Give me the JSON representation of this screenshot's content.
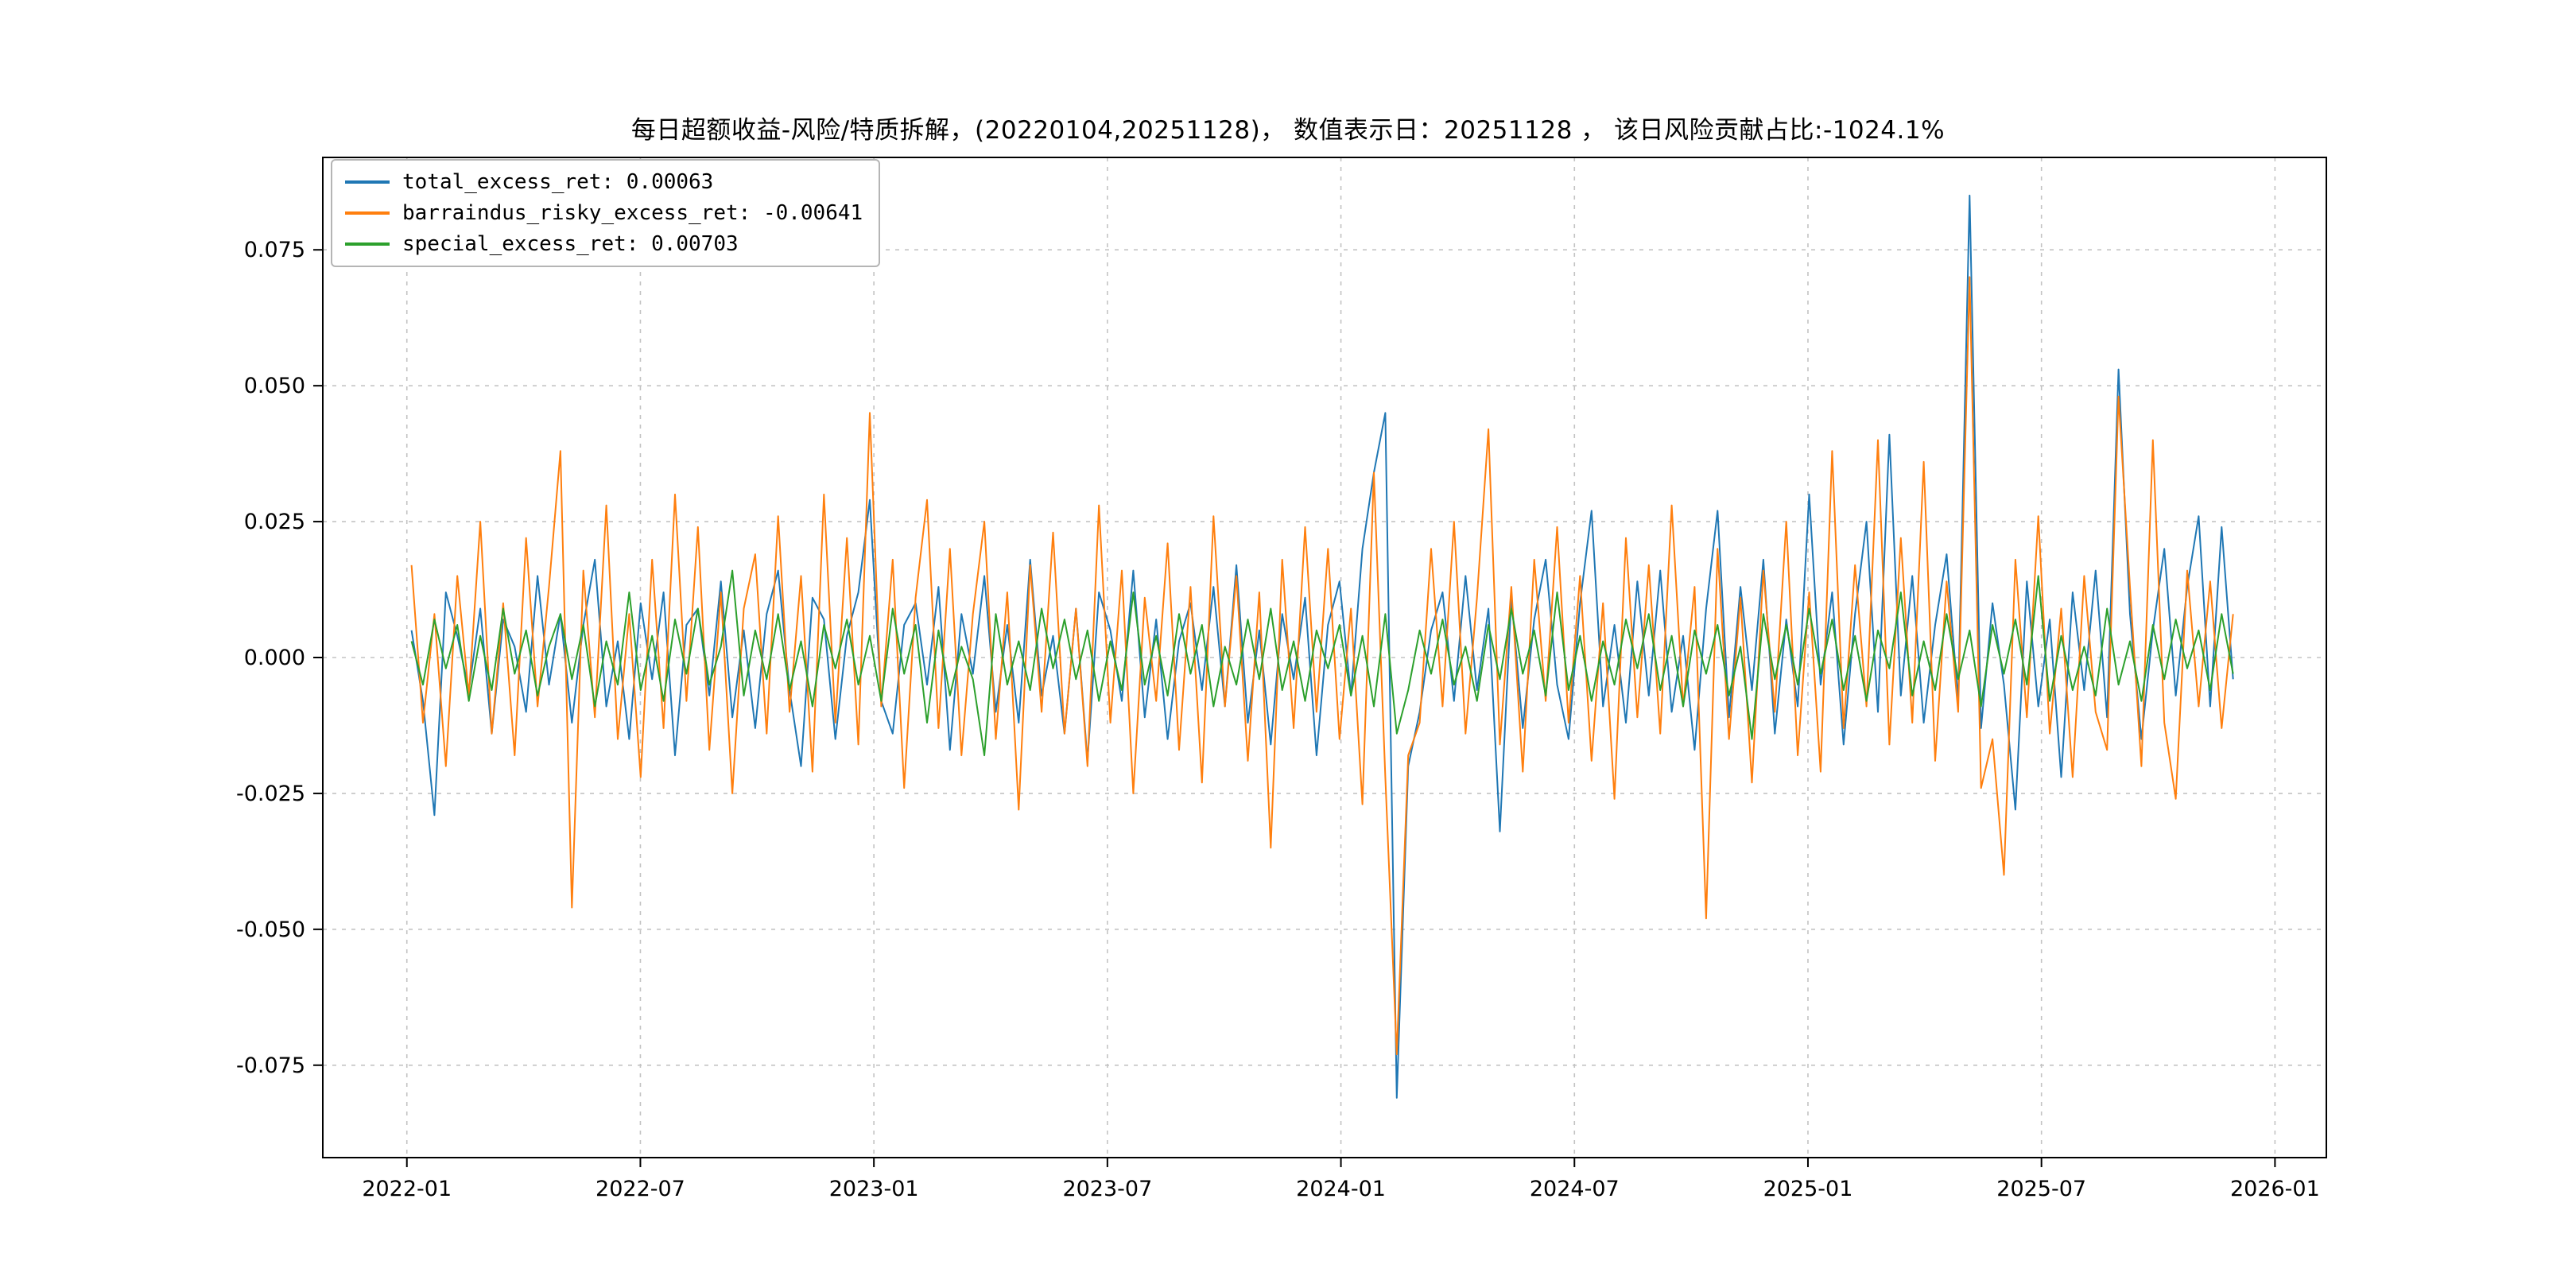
{
  "figure": {
    "title": "每日超额收益-风险/特质拆解，(20220104,20251128)，  数值表示日：20251128 ，  该日风险贡献占比:-1024.1%",
    "background": "#ffffff"
  },
  "legend": {
    "position": "upper-left",
    "items": [
      {
        "label": "total_excess_ret: 0.00063",
        "color": "#1f77b4"
      },
      {
        "label": "barraindus_risky_excess_ret: -0.00641",
        "color": "#ff7f0e"
      },
      {
        "label": "special_excess_ret: 0.00703",
        "color": "#2ca02c"
      }
    ]
  },
  "chart_data": {
    "type": "line",
    "title": "每日超额收益-风险/特质拆解，(20220104,20251128)，  数值表示日：20251128 ，  该日风险贡献占比:-1024.1%",
    "xlabel": "",
    "ylabel": "",
    "grid": "dashed",
    "legend_position": "upper-left",
    "xlim": [
      2021.82,
      2026.11
    ],
    "ylim": [
      -0.092,
      0.092
    ],
    "xticks": [
      {
        "label": "2022-01",
        "value": 2022.0
      },
      {
        "label": "2022-07",
        "value": 2022.5
      },
      {
        "label": "2023-01",
        "value": 2023.0
      },
      {
        "label": "2023-07",
        "value": 2023.5
      },
      {
        "label": "2024-01",
        "value": 2024.0
      },
      {
        "label": "2024-07",
        "value": 2024.5
      },
      {
        "label": "2025-01",
        "value": 2025.0
      },
      {
        "label": "2025-07",
        "value": 2025.5
      },
      {
        "label": "2026-01",
        "value": 2026.0
      }
    ],
    "yticks": [
      {
        "label": "-0.075",
        "value": -0.075
      },
      {
        "label": "-0.050",
        "value": -0.05
      },
      {
        "label": "-0.025",
        "value": -0.025
      },
      {
        "label": "0.000",
        "value": 0.0
      },
      {
        "label": "0.025",
        "value": 0.025
      },
      {
        "label": "0.050",
        "value": 0.05
      },
      {
        "label": "0.075",
        "value": 0.075
      }
    ],
    "x_start": 2022.01,
    "x_step": 0.02453,
    "y_scale": 0.001,
    "series": [
      {
        "name": "total_excess_ret",
        "last_value": 0.00063,
        "color": "#1f77b4",
        "values": [
          5,
          -8,
          -29,
          12,
          4,
          -6,
          9,
          -14,
          7,
          2,
          -10,
          15,
          -5,
          8,
          -12,
          6,
          18,
          -9,
          3,
          -15,
          10,
          -4,
          12,
          -18,
          6,
          9,
          -7,
          14,
          -11,
          5,
          -13,
          8,
          16,
          -6,
          -20,
          11,
          7,
          -15,
          4,
          12,
          29,
          -8,
          -14,
          6,
          10,
          -5,
          13,
          -17,
          8,
          -3,
          15,
          -10,
          6,
          -12,
          18,
          -7,
          4,
          -14,
          9,
          -19,
          12,
          5,
          -8,
          16,
          -11,
          7,
          -15,
          3,
          10,
          -6,
          13,
          -9,
          17,
          -12,
          5,
          -16,
          8,
          -4,
          11,
          -18,
          6,
          14,
          -7,
          20,
          34,
          45,
          -81,
          -20,
          -10,
          5,
          12,
          -8,
          15,
          -6,
          9,
          -32,
          11,
          -13,
          7,
          18,
          -5,
          -15,
          10,
          27,
          -9,
          6,
          -12,
          14,
          -7,
          16,
          -10,
          4,
          -17,
          9,
          27,
          -11,
          13,
          -6,
          18,
          -14,
          7,
          -9,
          30,
          -5,
          12,
          -16,
          8,
          25,
          -10,
          41,
          -7,
          15,
          -12,
          6,
          19,
          -8,
          85,
          -13,
          10,
          -5,
          -28,
          14,
          -9,
          7,
          -22,
          12,
          -6,
          16,
          -11,
          53,
          8,
          -15,
          5,
          20,
          -7,
          13,
          26,
          -9,
          24,
          -4
        ]
      },
      {
        "name": "barraindus_risky_excess_ret",
        "last_value": -0.00641,
        "color": "#ff7f0e",
        "values": [
          17,
          -12,
          8,
          -20,
          15,
          -7,
          25,
          -14,
          10,
          -18,
          22,
          -9,
          13,
          38,
          -46,
          16,
          -11,
          28,
          -15,
          8,
          -22,
          18,
          -13,
          30,
          -8,
          24,
          -17,
          12,
          -25,
          9,
          19,
          -14,
          26,
          -10,
          15,
          -21,
          30,
          -12,
          22,
          -16,
          45,
          -9,
          18,
          -24,
          11,
          29,
          -13,
          20,
          -18,
          8,
          25,
          -15,
          12,
          -28,
          17,
          -10,
          23,
          -14,
          9,
          -20,
          28,
          -12,
          16,
          -25,
          11,
          -8,
          21,
          -17,
          13,
          -23,
          26,
          -9,
          15,
          -19,
          12,
          -35,
          18,
          -13,
          24,
          -10,
          20,
          -15,
          9,
          -27,
          34,
          -22,
          -73,
          -18,
          -12,
          20,
          -9,
          25,
          -14,
          11,
          42,
          -16,
          13,
          -21,
          18,
          -8,
          24,
          -12,
          15,
          -19,
          10,
          -26,
          22,
          -11,
          17,
          -14,
          28,
          -9,
          13,
          -48,
          20,
          -15,
          11,
          -23,
          16,
          -10,
          25,
          -18,
          12,
          -21,
          38,
          -13,
          17,
          -9,
          40,
          -16,
          22,
          -12,
          36,
          -19,
          14,
          -10,
          70,
          -24,
          -15,
          -40,
          18,
          -11,
          26,
          -14,
          9,
          -22,
          15,
          -10,
          -17,
          48,
          13,
          -20,
          40,
          -12,
          -26,
          16,
          -9,
          14,
          -13,
          8
        ]
      },
      {
        "name": "special_excess_ret",
        "last_value": 0.00703,
        "color": "#2ca02c",
        "values": [
          3,
          -5,
          7,
          -2,
          6,
          -8,
          4,
          -6,
          9,
          -3,
          5,
          -7,
          2,
          8,
          -4,
          6,
          -9,
          3,
          -5,
          12,
          -6,
          4,
          -8,
          7,
          -3,
          9,
          -5,
          2,
          16,
          -7,
          5,
          -4,
          8,
          -6,
          3,
          -9,
          6,
          -2,
          7,
          -5,
          4,
          -8,
          9,
          -3,
          6,
          -12,
          5,
          -7,
          2,
          -4,
          -18,
          8,
          -5,
          3,
          -6,
          9,
          -2,
          7,
          -4,
          5,
          -8,
          3,
          -6,
          12,
          -5,
          4,
          -7,
          8,
          -3,
          6,
          -9,
          2,
          -5,
          7,
          -4,
          9,
          -6,
          3,
          -8,
          5,
          -2,
          6,
          -7,
          4,
          -9,
          8,
          -14,
          -6,
          5,
          -3,
          7,
          -5,
          2,
          -8,
          6,
          -4,
          9,
          -3,
          5,
          -7,
          12,
          -6,
          4,
          -8,
          3,
          -5,
          7,
          -2,
          8,
          -6,
          4,
          -9,
          5,
          -3,
          6,
          -7,
          2,
          -15,
          8,
          -4,
          6,
          -5,
          9,
          -3,
          7,
          -6,
          4,
          -8,
          5,
          -2,
          12,
          -7,
          3,
          -6,
          8,
          -4,
          5,
          -9,
          6,
          -3,
          7,
          -5,
          15,
          -8,
          4,
          -6,
          2,
          -7,
          9,
          -5,
          3,
          -8,
          6,
          -4,
          7,
          -2,
          5,
          -6,
          8,
          -3
        ]
      }
    ]
  }
}
